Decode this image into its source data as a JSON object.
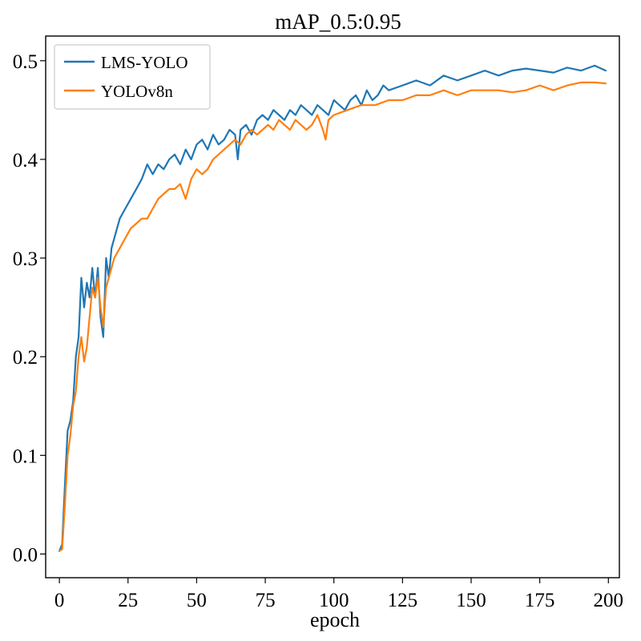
{
  "chart_data": {
    "type": "line",
    "title": "mAP_0.5:0.95",
    "xlabel": "epoch",
    "ylabel": "",
    "xlim": [
      -5,
      204
    ],
    "ylim": [
      -0.024,
      0.525
    ],
    "xticks": [
      0,
      25,
      50,
      75,
      100,
      125,
      150,
      175,
      200
    ],
    "yticks": [
      0.0,
      0.1,
      0.2,
      0.3,
      0.4,
      0.5
    ],
    "xtick_labels": [
      "0",
      "25",
      "50",
      "75",
      "100",
      "125",
      "150",
      "175",
      "200"
    ],
    "ytick_labels": [
      "0.0",
      "0.1",
      "0.2",
      "0.3",
      "0.4",
      "0.5"
    ],
    "grid": false,
    "legend_position": "top-left",
    "series": [
      {
        "name": "LMS-YOLO",
        "color": "#1f77b4",
        "x": [
          0,
          1,
          2,
          3,
          4,
          5,
          6,
          7,
          8,
          9,
          10,
          11,
          12,
          13,
          14,
          15,
          16,
          17,
          18,
          19,
          20,
          22,
          24,
          26,
          28,
          30,
          32,
          34,
          36,
          38,
          40,
          42,
          44,
          46,
          48,
          50,
          52,
          54,
          56,
          58,
          60,
          62,
          64,
          65,
          66,
          68,
          70,
          72,
          74,
          76,
          78,
          80,
          82,
          84,
          86,
          88,
          90,
          92,
          94,
          96,
          98,
          100,
          102,
          104,
          106,
          108,
          110,
          112,
          114,
          116,
          118,
          120,
          125,
          130,
          135,
          140,
          145,
          150,
          155,
          160,
          165,
          170,
          175,
          180,
          185,
          190,
          195,
          199
        ],
        "values": [
          0.003,
          0.01,
          0.07,
          0.125,
          0.135,
          0.155,
          0.2,
          0.22,
          0.28,
          0.25,
          0.275,
          0.26,
          0.29,
          0.26,
          0.29,
          0.24,
          0.22,
          0.3,
          0.28,
          0.31,
          0.32,
          0.34,
          0.35,
          0.36,
          0.37,
          0.38,
          0.395,
          0.385,
          0.395,
          0.39,
          0.4,
          0.405,
          0.395,
          0.41,
          0.4,
          0.415,
          0.42,
          0.41,
          0.425,
          0.415,
          0.42,
          0.43,
          0.425,
          0.4,
          0.43,
          0.435,
          0.425,
          0.44,
          0.445,
          0.44,
          0.45,
          0.445,
          0.44,
          0.45,
          0.445,
          0.455,
          0.45,
          0.445,
          0.455,
          0.45,
          0.445,
          0.46,
          0.455,
          0.45,
          0.46,
          0.465,
          0.455,
          0.47,
          0.46,
          0.465,
          0.475,
          0.47,
          0.475,
          0.48,
          0.475,
          0.485,
          0.48,
          0.485,
          0.49,
          0.485,
          0.49,
          0.492,
          0.49,
          0.488,
          0.493,
          0.49,
          0.495,
          0.49
        ]
      },
      {
        "name": "YOLOv8n",
        "color": "#ff7f0e",
        "x": [
          0,
          1,
          2,
          3,
          4,
          5,
          6,
          7,
          8,
          9,
          10,
          11,
          12,
          13,
          14,
          15,
          16,
          17,
          18,
          20,
          22,
          24,
          26,
          28,
          30,
          32,
          34,
          36,
          38,
          40,
          42,
          44,
          46,
          48,
          50,
          52,
          54,
          56,
          58,
          60,
          62,
          64,
          66,
          68,
          70,
          72,
          74,
          76,
          78,
          80,
          82,
          84,
          86,
          88,
          90,
          92,
          94,
          96,
          97,
          98,
          100,
          105,
          110,
          115,
          120,
          125,
          130,
          135,
          140,
          145,
          150,
          155,
          160,
          165,
          170,
          175,
          180,
          185,
          190,
          195,
          199
        ],
        "values": [
          0.003,
          0.005,
          0.05,
          0.1,
          0.12,
          0.15,
          0.165,
          0.2,
          0.22,
          0.195,
          0.21,
          0.24,
          0.27,
          0.26,
          0.28,
          0.25,
          0.23,
          0.27,
          0.28,
          0.3,
          0.31,
          0.32,
          0.33,
          0.335,
          0.34,
          0.34,
          0.35,
          0.36,
          0.365,
          0.37,
          0.37,
          0.375,
          0.36,
          0.38,
          0.39,
          0.385,
          0.39,
          0.4,
          0.405,
          0.41,
          0.415,
          0.42,
          0.415,
          0.425,
          0.43,
          0.425,
          0.43,
          0.435,
          0.43,
          0.44,
          0.435,
          0.43,
          0.44,
          0.435,
          0.43,
          0.435,
          0.445,
          0.43,
          0.42,
          0.44,
          0.445,
          0.45,
          0.455,
          0.455,
          0.46,
          0.46,
          0.465,
          0.465,
          0.47,
          0.465,
          0.47,
          0.47,
          0.47,
          0.468,
          0.47,
          0.475,
          0.47,
          0.475,
          0.478,
          0.478,
          0.477
        ]
      }
    ]
  }
}
